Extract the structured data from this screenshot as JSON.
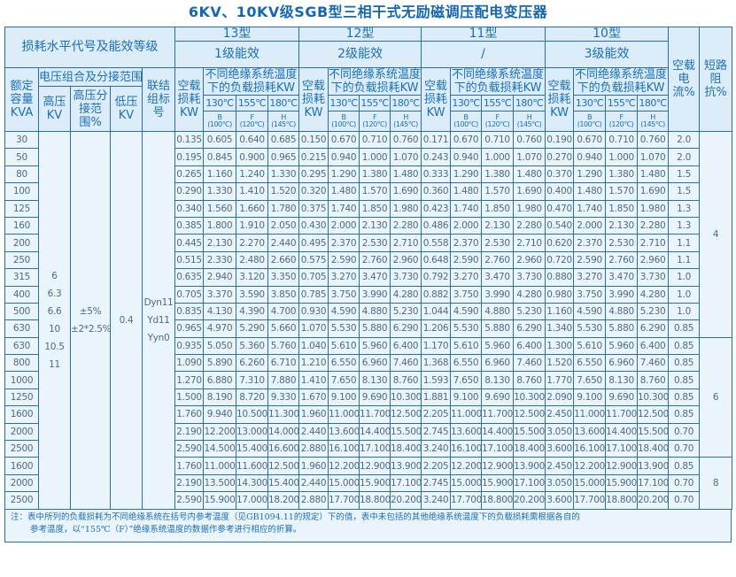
{
  "title": "6KV、10KV级SGB型三相干式无励磁调压配电变压器",
  "header": {
    "loss_level": "损耗水平代号及能效等级",
    "groups": [
      {
        "type": "13型",
        "grade": "1级能效"
      },
      {
        "type": "12型",
        "grade": "2级能效"
      },
      {
        "type": "11型",
        "grade": "/"
      },
      {
        "type": "10型",
        "grade": "3级能效"
      }
    ],
    "rated_capacity": "额定容量KVA",
    "voltage_combo": "电压组合及分接范围",
    "hv": "高压KV",
    "tap": "高压分接范围%",
    "lv": "低压KV",
    "connection": "联结组标号",
    "no_load_loss": "空载损耗KW",
    "load_loss": "不同绝缘系统温度下的负载损耗KW",
    "temps": [
      "130℃",
      "155℃",
      "180℃"
    ],
    "classes": [
      [
        "B",
        "(100℃)"
      ],
      [
        "F",
        "(120℃)"
      ],
      [
        "H",
        "(145℃)"
      ]
    ],
    "no_load_current": "空载电流%",
    "impedance": "短路阻抗%"
  },
  "common": {
    "hv": [
      "6",
      "6.3",
      "6.6",
      "10",
      "10.5",
      "11"
    ],
    "tap": [
      "±5%",
      "±2*2.5%"
    ],
    "lv": "0.4",
    "connection": [
      "Dyn11",
      "Yd11",
      "Yyn0"
    ]
  },
  "impedance_groups": [
    {
      "value": "4",
      "rows": 12
    },
    {
      "value": "6",
      "rows": 7
    },
    {
      "value": "8",
      "rows": 3
    }
  ],
  "rows": [
    [
      "30",
      "0.135",
      "0.605",
      "0.640",
      "0.685",
      "0.150",
      "0.670",
      "0.710",
      "0.760",
      "0.171",
      "0.670",
      "0.710",
      "0.760",
      "0.190",
      "0.670",
      "0.710",
      "0.760",
      "2.0"
    ],
    [
      "50",
      "0.195",
      "0.845",
      "0.900",
      "0.965",
      "0.215",
      "0.940",
      "1.000",
      "1.070",
      "0.243",
      "0.940",
      "1.000",
      "1.070",
      "0.270",
      "0.940",
      "1.000",
      "1.070",
      "2.0"
    ],
    [
      "80",
      "0.265",
      "1.160",
      "1.240",
      "1.330",
      "0.295",
      "1.290",
      "1.380",
      "1.480",
      "0.333",
      "1.290",
      "1.380",
      "1.480",
      "0.370",
      "1.290",
      "1.380",
      "1.480",
      "1.5"
    ],
    [
      "100",
      "0.290",
      "1.330",
      "1.410",
      "1.520",
      "0.320",
      "1.480",
      "1.570",
      "1.690",
      "0.360",
      "1.480",
      "1.570",
      "1.690",
      "0.400",
      "1.480",
      "1.570",
      "1.690",
      "1.5"
    ],
    [
      "125",
      "0.340",
      "1.560",
      "1.660",
      "1.780",
      "0.375",
      "1.740",
      "1.850",
      "1.980",
      "0.423",
      "1.740",
      "1.850",
      "1.980",
      "0.470",
      "1.740",
      "1.850",
      "1.980",
      "1.3"
    ],
    [
      "160",
      "0.385",
      "1.800",
      "1.910",
      "2.050",
      "0.430",
      "2.000",
      "2.130",
      "2.280",
      "0.486",
      "2.000",
      "2.130",
      "2.280",
      "0.540",
      "2.000",
      "2.130",
      "2.280",
      "1.3"
    ],
    [
      "200",
      "0.445",
      "2.130",
      "2.270",
      "2.440",
      "0.495",
      "2.370",
      "2.530",
      "2.710",
      "0.558",
      "2.370",
      "2.530",
      "2.710",
      "0.620",
      "2.370",
      "2.530",
      "2.710",
      "1.1"
    ],
    [
      "250",
      "0.515",
      "2.330",
      "2.480",
      "2.660",
      "0.575",
      "2.590",
      "2.760",
      "2.960",
      "0.648",
      "2.590",
      "2.760",
      "2.960",
      "0.720",
      "2.590",
      "2.760",
      "2.960",
      "1.1"
    ],
    [
      "315",
      "0.635",
      "2.940",
      "3.120",
      "3.350",
      "0.705",
      "3.270",
      "3.470",
      "3.730",
      "0.792",
      "3.270",
      "3.470",
      "3.730",
      "0.880",
      "3.270",
      "3.470",
      "3.730",
      "1.0"
    ],
    [
      "400",
      "0.705",
      "3.370",
      "3.590",
      "3.850",
      "0.785",
      "3.750",
      "3.990",
      "4.280",
      "0.882",
      "3.750",
      "3.990",
      "4.280",
      "0.980",
      "3.750",
      "3.990",
      "4.280",
      "1.0"
    ],
    [
      "500",
      "0.835",
      "4.130",
      "4.390",
      "4.700",
      "0.930",
      "4.590",
      "4.880",
      "5.230",
      "1.044",
      "4.590",
      "4.880",
      "5.230",
      "1.160",
      "4.590",
      "4.880",
      "5.230",
      "1.0"
    ],
    [
      "630",
      "0.965",
      "4.970",
      "5.290",
      "5.660",
      "1.070",
      "5.530",
      "5.880",
      "6.290",
      "1.206",
      "5.530",
      "5.880",
      "6.290",
      "1.340",
      "5.530",
      "5.880",
      "6.290",
      "0.85"
    ],
    [
      "630",
      "0.935",
      "5.050",
      "5.360",
      "5.760",
      "1.040",
      "5.610",
      "5.960",
      "6.400",
      "1.170",
      "5.610",
      "5.960",
      "6.400",
      "1.300",
      "5.610",
      "5.960",
      "6.400",
      "0.85"
    ],
    [
      "800",
      "1.090",
      "5.890",
      "6.260",
      "6.710",
      "1.210",
      "6.550",
      "6.960",
      "7.460",
      "1.368",
      "6.550",
      "6.960",
      "7.460",
      "1.520",
      "6.550",
      "6.960",
      "7.460",
      "0.85"
    ],
    [
      "1000",
      "1.270",
      "6.880",
      "7.310",
      "7.880",
      "1.410",
      "7.650",
      "8.130",
      "8.760",
      "1.593",
      "7.650",
      "8.130",
      "8.760",
      "1.770",
      "7.650",
      "8.130",
      "8.760",
      "0.85"
    ],
    [
      "1250",
      "1.500",
      "8.190",
      "8.720",
      "9.330",
      "1.670",
      "9.100",
      "9.690",
      "10.300",
      "1.881",
      "9.100",
      "9.690",
      "10.300",
      "2.090",
      "9.100",
      "9.690",
      "10.300",
      "0.85"
    ],
    [
      "1600",
      "1.760",
      "9.940",
      "10.500",
      "11.300",
      "1.960",
      "11.000",
      "11.700",
      "12.500",
      "2.205",
      "11.000",
      "11.700",
      "12.500",
      "2.450",
      "11.000",
      "11.700",
      "12.500",
      "0.85"
    ],
    [
      "2000",
      "2.190",
      "12.200",
      "13.000",
      "14.000",
      "2.440",
      "13.600",
      "14.400",
      "15.500",
      "2.745",
      "13.600",
      "14.400",
      "15.500",
      "3.050",
      "13.600",
      "14.400",
      "15.500",
      "0.70"
    ],
    [
      "2500",
      "2.590",
      "14.500",
      "15.400",
      "16.600",
      "2.880",
      "16.100",
      "17.100",
      "18.400",
      "3.240",
      "16.100",
      "17.100",
      "18.400",
      "3.600",
      "16.100",
      "17.100",
      "18.400",
      "0.70"
    ],
    [
      "1600",
      "1.760",
      "11.000",
      "11.600",
      "12.500",
      "1.960",
      "12.200",
      "12.900",
      "13.900",
      "2.205",
      "12.200",
      "12.900",
      "13.900",
      "2.450",
      "12.200",
      "12.900",
      "13.900",
      "0.85"
    ],
    [
      "2000",
      "2.190",
      "13.500",
      "14.300",
      "15.400",
      "2.440",
      "15.000",
      "15.900",
      "17.100",
      "2.745",
      "15.000",
      "15.900",
      "17.100",
      "3.050",
      "15.000",
      "15.900",
      "17.100",
      "0.70"
    ],
    [
      "2500",
      "2.590",
      "15.900",
      "17.000",
      "18.200",
      "2.880",
      "17.700",
      "18.800",
      "20.200",
      "3.240",
      "17.700",
      "18.800",
      "20.200",
      "3.600",
      "17.700",
      "18.800",
      "20.200",
      "0.70"
    ]
  ],
  "note": {
    "line1": "注：表中所列的负载损耗为不同绝缘系统在括号内参考温度（见GB1094.11的规定）下的值，表中未包括的其他绝缘系统温度下的负载损耗需根据各自的",
    "line2": "参考温度，以“155℃（F）”绝缘系统温度的数据作参考进行相应的折算。"
  },
  "colors": {
    "title": "#1466b3",
    "border": "#2a6ea8",
    "header_bg": "#dcedf9",
    "cell_bg": "#eaf4fb"
  }
}
